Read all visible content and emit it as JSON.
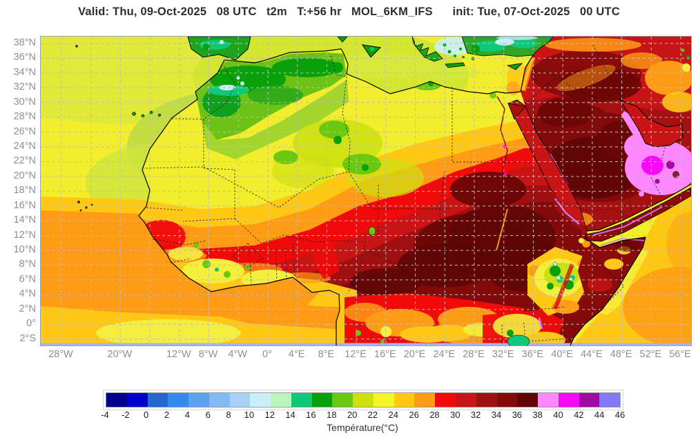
{
  "title": "Valid: Thu, 09-Oct-2025   08 UTC   t2m   T:+56 hr   MOL_6KM_IFS      init: Tue, 07-Oct-2025   00 UTC",
  "map": {
    "lat_ticks": [
      {
        "value": 38,
        "label": "38°N"
      },
      {
        "value": 36,
        "label": "36°N"
      },
      {
        "value": 34,
        "label": "34°N"
      },
      {
        "value": 32,
        "label": "32°N"
      },
      {
        "value": 30,
        "label": "30°N"
      },
      {
        "value": 28,
        "label": "28°N"
      },
      {
        "value": 26,
        "label": "26°N"
      },
      {
        "value": 24,
        "label": "24°N"
      },
      {
        "value": 22,
        "label": "22°N"
      },
      {
        "value": 20,
        "label": "20°N"
      },
      {
        "value": 18,
        "label": "18°N"
      },
      {
        "value": 16,
        "label": "16°N"
      },
      {
        "value": 14,
        "label": "14°N"
      },
      {
        "value": 12,
        "label": "12°N"
      },
      {
        "value": 10,
        "label": "10°N"
      },
      {
        "value": 8,
        "label": "8°N"
      },
      {
        "value": 6,
        "label": "6°N"
      },
      {
        "value": 4,
        "label": "4°N"
      },
      {
        "value": 2,
        "label": "2°N"
      },
      {
        "value": 0,
        "label": "0°"
      },
      {
        "value": -2,
        "label": "2°S"
      }
    ],
    "lon_ticks": [
      {
        "value": -28,
        "label": "28°W"
      },
      {
        "value": -24,
        "label": ""
      },
      {
        "value": -20,
        "label": "20°W"
      },
      {
        "value": -16,
        "label": ""
      },
      {
        "value": -12,
        "label": "12°W"
      },
      {
        "value": -8,
        "label": "8°W"
      },
      {
        "value": -4,
        "label": "4°W"
      },
      {
        "value": 0,
        "label": "0°"
      },
      {
        "value": 4,
        "label": "4°E"
      },
      {
        "value": 8,
        "label": "8°E"
      },
      {
        "value": 12,
        "label": "12°E"
      },
      {
        "value": 16,
        "label": "16°E"
      },
      {
        "value": 20,
        "label": "20°E"
      },
      {
        "value": 24,
        "label": "24°E"
      },
      {
        "value": 28,
        "label": "28°E"
      },
      {
        "value": 32,
        "label": "32°E"
      },
      {
        "value": 36,
        "label": "36°E"
      },
      {
        "value": 40,
        "label": "40°E"
      },
      {
        "value": 44,
        "label": "44°E"
      },
      {
        "value": 48,
        "label": "48°E"
      },
      {
        "value": 52,
        "label": "52°E"
      },
      {
        "value": 56,
        "label": "56°E"
      }
    ]
  },
  "colorbar": {
    "label": "Température(°C)",
    "ticks": [
      "-4",
      "-2",
      "0",
      "2",
      "4",
      "6",
      "8",
      "10",
      "12",
      "14",
      "16",
      "18",
      "20",
      "22",
      "24",
      "26",
      "28",
      "30",
      "32",
      "34",
      "36",
      "38",
      "40",
      "42",
      "44",
      "46"
    ],
    "colors": [
      "#00008B",
      "#0000CD",
      "#2268CE",
      "#3389F0",
      "#5BA1F0",
      "#84BAF2",
      "#A9D1F5",
      "#C9F0FA",
      "#BAF5BE",
      "#0FC878",
      "#0AA00A",
      "#69C80F",
      "#CDE00F",
      "#F5F528",
      "#FFC814",
      "#FF9B14",
      "#F00A0A",
      "#C81414",
      "#A01010",
      "#820A0A",
      "#5F0505",
      "#FF87FF",
      "#F50AF5",
      "#A00AA0",
      "#8278F8"
    ]
  }
}
